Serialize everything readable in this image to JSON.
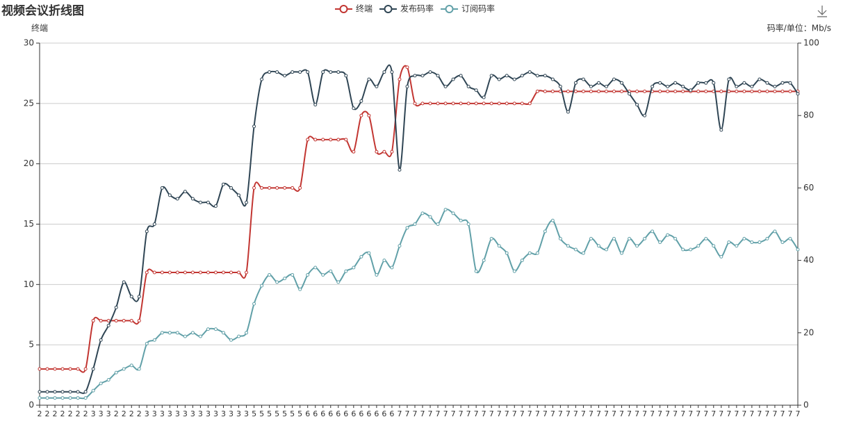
{
  "chart_data": {
    "type": "line",
    "title": "视频会议折线图",
    "y_label": "终端",
    "y2_label": "码率/单位：Mb/s",
    "categories": [
      "2",
      "2",
      "2",
      "2",
      "2",
      "2",
      "2",
      "3",
      "3",
      "3",
      "2",
      "2",
      "2",
      "2",
      "3",
      "3",
      "3",
      "3",
      "3",
      "3",
      "3",
      "3",
      "3",
      "3",
      "3",
      "3",
      "3",
      "3",
      "5",
      "5",
      "5",
      "5",
      "5",
      "5",
      "5",
      "6",
      "6",
      "6",
      "6",
      "6",
      "6",
      "6",
      "6",
      "6",
      "6",
      "6",
      "6",
      "7",
      "7",
      "7",
      "7",
      "7",
      "7",
      "7",
      "7",
      "7",
      "7",
      "7",
      "7",
      "7",
      "7",
      "7",
      "7",
      "7",
      "7",
      "7",
      "7",
      "7",
      "7",
      "7",
      "7",
      "7",
      "7",
      "7",
      "7",
      "7",
      "7",
      "7",
      "7",
      "7",
      "7",
      "7",
      "7",
      "7",
      "7",
      "7",
      "7",
      "7",
      "7",
      "7",
      "7",
      "7",
      "7",
      "7",
      "7",
      "7",
      "7",
      "7",
      "7",
      "7"
    ],
    "series": [
      {
        "name": "终端",
        "color": "#c23531",
        "values": [
          3,
          3,
          3,
          3,
          3,
          3,
          3,
          7,
          7,
          7,
          7,
          7,
          7,
          7,
          11,
          11,
          11,
          11,
          11,
          11,
          11,
          11,
          11,
          11,
          11,
          11,
          11,
          11,
          18,
          18,
          18,
          18,
          18,
          18,
          18,
          22,
          22,
          22,
          22,
          22,
          22,
          21,
          24,
          24,
          21,
          21,
          21,
          27,
          28,
          25,
          25,
          25,
          25,
          25,
          25,
          25,
          25,
          25,
          25,
          25,
          25,
          25,
          25,
          25,
          25,
          26,
          26,
          26,
          26,
          26,
          26,
          26,
          26,
          26,
          26,
          26,
          26,
          26,
          26,
          26,
          26,
          26,
          26,
          26,
          26,
          26,
          26,
          26,
          26,
          26,
          26,
          26,
          26,
          26,
          26,
          26,
          26,
          26,
          26,
          26
        ]
      },
      {
        "name": "发布码率",
        "color": "#2f4554",
        "axis": "y2",
        "values": [
          3.7,
          3.7,
          3.7,
          3.7,
          3.7,
          3.7,
          3.7,
          10,
          18,
          22,
          27,
          34,
          30,
          30,
          48,
          50,
          60,
          58,
          57,
          59,
          57,
          56,
          56,
          55,
          61,
          60,
          58,
          56,
          77,
          90,
          92,
          92,
          91,
          92,
          92,
          92,
          83,
          92,
          92,
          92,
          91,
          82,
          84,
          90,
          88,
          92,
          92,
          65,
          88,
          91,
          91,
          92,
          91,
          88,
          90,
          91,
          88,
          87,
          85,
          91,
          90,
          91,
          90,
          91,
          92,
          91,
          91,
          90,
          88,
          81,
          89,
          90,
          88,
          89,
          88,
          90,
          89,
          86,
          83,
          80,
          88,
          89,
          88,
          89,
          88,
          87,
          89,
          89,
          89,
          76,
          90,
          88,
          89,
          88,
          90,
          89,
          88,
          89,
          89,
          86
        ]
      },
      {
        "name": "订阅码率",
        "color": "#61a0a8",
        "axis": "y2",
        "values": [
          2,
          2,
          2,
          2,
          2,
          2,
          2,
          4,
          6,
          7,
          9,
          10,
          11,
          10,
          17,
          18,
          20,
          20,
          20,
          19,
          20,
          19,
          21,
          21,
          20,
          18,
          19,
          20,
          28,
          33,
          36,
          34,
          35,
          36,
          32,
          36,
          38,
          36,
          37,
          34,
          37,
          38,
          41,
          42,
          36,
          40,
          38,
          44,
          49,
          50,
          53,
          52,
          50,
          54,
          53,
          51,
          50,
          37,
          40,
          46,
          44,
          42,
          37,
          40,
          42,
          42,
          48,
          51,
          46,
          44,
          43,
          42,
          46,
          44,
          43,
          46,
          42,
          46,
          44,
          46,
          48,
          45,
          47,
          46,
          43,
          43,
          44,
          46,
          44,
          41,
          45,
          44,
          46,
          45,
          45,
          46,
          48,
          45,
          46,
          43
        ]
      }
    ],
    "ylim": [
      0,
      30
    ],
    "yticks": [
      0,
      5,
      10,
      15,
      20,
      25,
      30
    ],
    "y2lim": [
      0,
      100
    ],
    "y2ticks": [
      0,
      20,
      40,
      60,
      80,
      100
    ],
    "grid": true,
    "legend": "top"
  }
}
